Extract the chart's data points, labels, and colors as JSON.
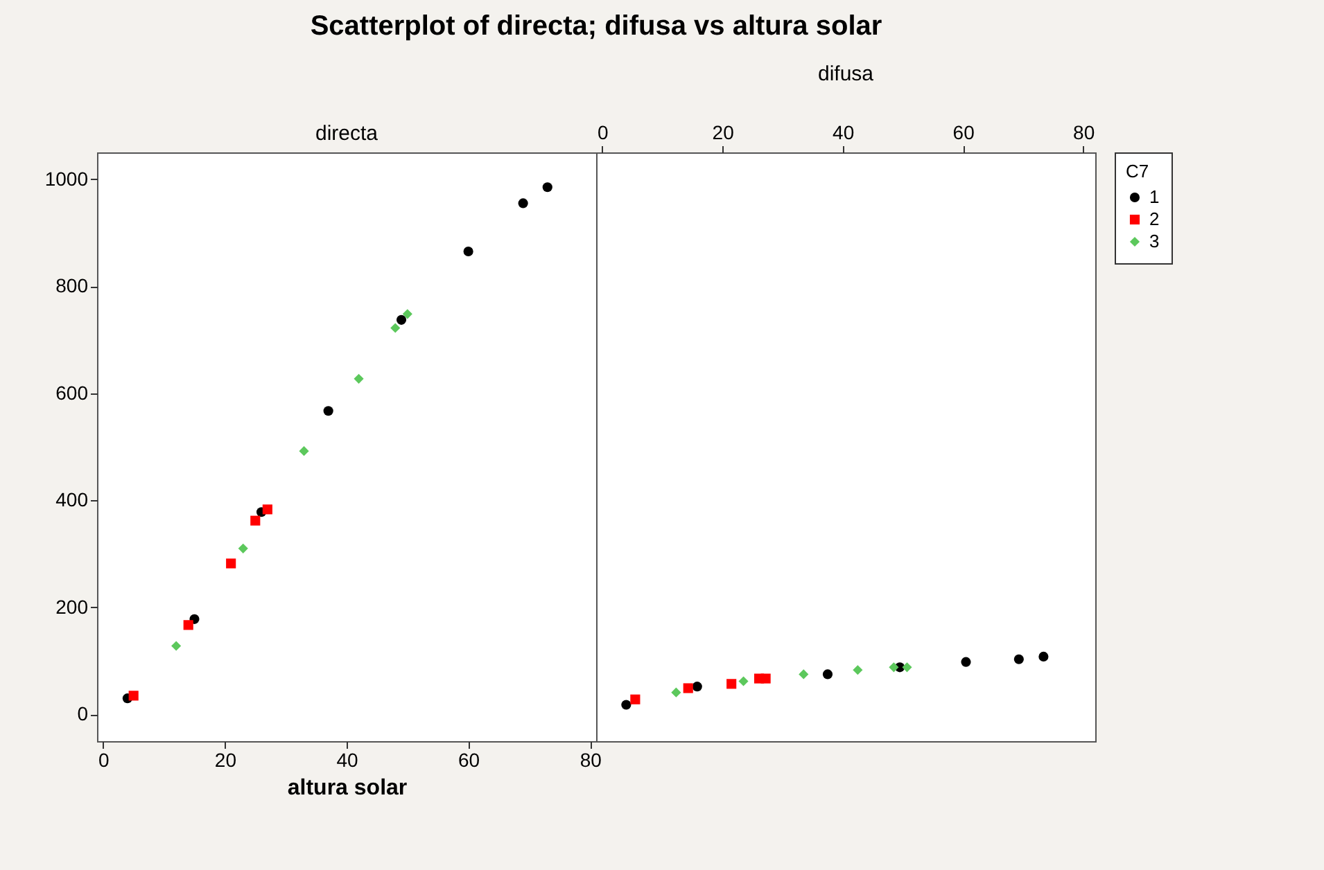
{
  "chart_data": [
    {
      "type": "scatter",
      "title": "Scatterplot of directa; difusa vs altura solar",
      "subtitle": "directa",
      "xlabel": "altura solar",
      "xlim": [
        -1,
        81
      ],
      "xticks": [
        0,
        20,
        40,
        60,
        80
      ],
      "ylim": [
        -50,
        1050
      ],
      "yticks": [
        0,
        200,
        400,
        600,
        800,
        1000
      ],
      "grid": false,
      "legend": false,
      "series": [
        {
          "color": "#000000",
          "marker": "circle",
          "x": [
            4,
            15,
            26,
            37,
            49,
            60,
            69,
            73
          ],
          "values": [
            30,
            178,
            378,
            567,
            737,
            865,
            955,
            985
          ]
        },
        {
          "color": "#ff0000",
          "marker": "square",
          "x": [
            5,
            14,
            21,
            25,
            27
          ],
          "values": [
            35,
            167,
            282,
            362,
            383
          ]
        },
        {
          "color": "#5cc85c",
          "marker": "diamond",
          "x": [
            12,
            23,
            33,
            42,
            48,
            50
          ],
          "values": [
            128,
            310,
            492,
            627,
            722,
            748
          ]
        }
      ]
    },
    {
      "type": "scatter",
      "subtitle": "difusa",
      "xlim": [
        -1,
        82
      ],
      "xticks": [
        0,
        20,
        40,
        60,
        80
      ],
      "ylim": [
        -50,
        1050
      ],
      "yticks": [
        0,
        200,
        400,
        600,
        800,
        1000
      ],
      "tick_labels": "x",
      "grid": false,
      "legend": "right",
      "legend_title": "C7",
      "series": [
        {
          "name": "1",
          "color": "#000000",
          "marker": "circle",
          "x": [
            4,
            15.8,
            37.5,
            49.5,
            60.5,
            69.3,
            73.4
          ],
          "values": [
            18,
            52,
            75,
            88,
            98,
            103,
            108
          ]
        },
        {
          "name": "2",
          "color": "#ff0000",
          "marker": "square",
          "x": [
            5.5,
            14.3,
            21.5,
            26.1,
            27.2
          ],
          "values": [
            28,
            49,
            57,
            67,
            67
          ]
        },
        {
          "name": "3",
          "color": "#5cc85c",
          "marker": "diamond",
          "x": [
            12.3,
            23.5,
            33.5,
            42.5,
            48.5,
            50.7
          ],
          "values": [
            41,
            62,
            75,
            83,
            88,
            88
          ]
        }
      ]
    }
  ]
}
